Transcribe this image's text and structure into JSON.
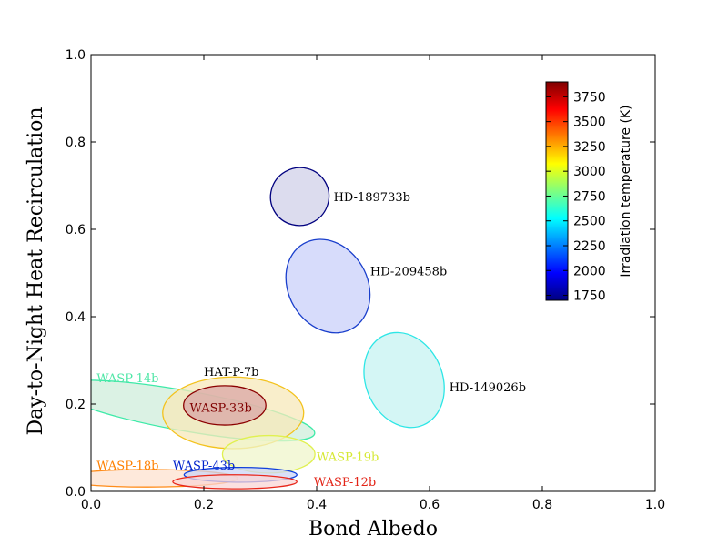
{
  "chart_data": {
    "type": "scatter",
    "title": "",
    "xlabel": "Bond  Albedo",
    "ylabel": "Day-to-Night  Heat  Recirculation",
    "xlim": [
      0.0,
      1.0
    ],
    "ylim": [
      0.0,
      1.0
    ],
    "xticks": [
      "0.0",
      "0.2",
      "0.4",
      "0.6",
      "0.8",
      "1.0"
    ],
    "yticks": [
      "0.0",
      "0.2",
      "0.4",
      "0.6",
      "0.8",
      "1.0"
    ],
    "grid": false,
    "colorbar": {
      "label": "Irradiation temperature (K)",
      "range": [
        1700,
        3900
      ],
      "ticks": [
        "1750",
        "2000",
        "2250",
        "2500",
        "2750",
        "3000",
        "3250",
        "3500",
        "3750"
      ],
      "colors": [
        "#00007f",
        "#0000ff",
        "#007fff",
        "#00ffff",
        "#7fff7f",
        "#ffff00",
        "#ff7f00",
        "#ff0000",
        "#7f0000"
      ]
    },
    "series": [
      {
        "name": "HD-189733b",
        "cx": 0.37,
        "cy": 0.675,
        "rx": 0.052,
        "ry": 0.066,
        "angle": -30,
        "stroke": "#00007f",
        "fill": "#d0d0e8",
        "label": "HD-189733b",
        "label_color": "#000000",
        "lx": 0.43,
        "ly": 0.675
      },
      {
        "name": "HD-209458b",
        "cx": 0.42,
        "cy": 0.47,
        "rx": 0.07,
        "ry": 0.112,
        "angle": -30,
        "stroke": "#1a3fcc",
        "fill": "#c9d0f9",
        "label": "HD-209458b",
        "label_color": "#000000",
        "lx": 0.495,
        "ly": 0.505
      },
      {
        "name": "HD-149026b",
        "cx": 0.555,
        "cy": 0.255,
        "rx": 0.068,
        "ry": 0.112,
        "angle": -23,
        "stroke": "#2de6e6",
        "fill": "#c6f3f1",
        "label": "HD-149026b",
        "label_color": "#000000",
        "lx": 0.635,
        "ly": 0.24
      },
      {
        "name": "WASP-14b",
        "cx": 0.165,
        "cy": 0.185,
        "rx": 0.235,
        "ry": 0.046,
        "angle": 10,
        "stroke": "#3deaa8",
        "fill": "#cfeedb",
        "label": "WASP-14b",
        "label_color": "#4ee6a6",
        "lx": 0.01,
        "ly": 0.26
      },
      {
        "name": "HAT-P-7b",
        "cx": 0.252,
        "cy": 0.18,
        "rx": 0.125,
        "ry": 0.082,
        "angle": 0,
        "stroke": "#f3c21d",
        "fill": "#f7e8b9",
        "label": "HAT-P-7b",
        "label_color": "#000000",
        "lx": 0.2,
        "ly": 0.275
      },
      {
        "name": "WASP-33b",
        "cx": 0.237,
        "cy": 0.197,
        "rx": 0.073,
        "ry": 0.045,
        "angle": 0,
        "stroke": "#8b0000",
        "fill": "#d9a6a6",
        "label": "WASP-33b",
        "label_color": "#7f0000",
        "lx": 0.175,
        "ly": 0.193
      },
      {
        "name": "WASP-19b",
        "cx": 0.315,
        "cy": 0.085,
        "rx": 0.082,
        "ry": 0.043,
        "angle": 0,
        "stroke": "#e0f050",
        "fill": "#eff6cb",
        "label": "WASP-19b",
        "label_color": "#d6e832",
        "lx": 0.4,
        "ly": 0.08
      },
      {
        "name": "WASP-18b",
        "cx": 0.1,
        "cy": 0.03,
        "rx": 0.16,
        "ry": 0.02,
        "angle": 0,
        "stroke": "#ff8c1a",
        "fill": "#fde2cf",
        "label": "WASP-18b",
        "label_color": "#ff8000",
        "lx": 0.01,
        "ly": 0.06
      },
      {
        "name": "WASP-43b",
        "cx": 0.265,
        "cy": 0.038,
        "rx": 0.1,
        "ry": 0.017,
        "angle": 0,
        "stroke": "#1040dd",
        "fill": "#ccd4f6",
        "label": "WASP-43b",
        "label_color": "#0022cc",
        "lx": 0.145,
        "ly": 0.06
      },
      {
        "name": "WASP-12b",
        "cx": 0.255,
        "cy": 0.022,
        "rx": 0.11,
        "ry": 0.016,
        "angle": 0,
        "stroke": "#e8261a",
        "fill": "#f9d5d5",
        "label": "WASP-12b",
        "label_color": "#e32417",
        "lx": 0.395,
        "ly": 0.023
      }
    ]
  }
}
